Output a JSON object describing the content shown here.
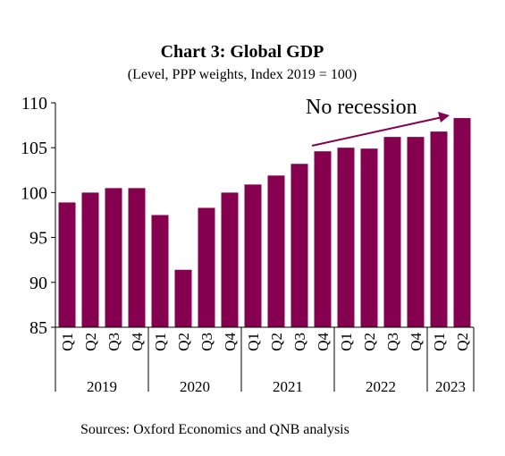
{
  "chart_data": {
    "type": "bar",
    "title": "Chart 3: Global GDP",
    "subtitle": "(Level, PPP weights, Index 2019 = 100)",
    "xlabel": "",
    "ylabel": "",
    "ylim": [
      85,
      110
    ],
    "yticks": [
      85,
      90,
      95,
      100,
      105,
      110
    ],
    "categories": [
      "Q1",
      "Q2",
      "Q3",
      "Q4",
      "Q1",
      "Q2",
      "Q3",
      "Q4",
      "Q1",
      "Q2",
      "Q3",
      "Q4",
      "Q1",
      "Q2",
      "Q3",
      "Q4",
      "Q1",
      "Q2"
    ],
    "years": [
      {
        "label": "2019",
        "start": 0,
        "count": 4
      },
      {
        "label": "2020",
        "start": 4,
        "count": 4
      },
      {
        "label": "2021",
        "start": 8,
        "count": 4
      },
      {
        "label": "2022",
        "start": 12,
        "count": 4
      },
      {
        "label": "2023",
        "start": 16,
        "count": 2
      }
    ],
    "values": [
      98.9,
      100.0,
      100.5,
      100.5,
      97.5,
      91.4,
      98.3,
      100.0,
      100.9,
      101.9,
      103.2,
      104.6,
      105.0,
      104.9,
      106.2,
      106.2,
      106.8,
      108.3
    ],
    "annotation": {
      "text": "No recession",
      "arrow_from_index": 11,
      "arrow_to_index": 17
    },
    "bar_color": "#85004F",
    "grid": false,
    "legend": "none"
  },
  "source": "Sources: Oxford Economics and QNB analysis"
}
